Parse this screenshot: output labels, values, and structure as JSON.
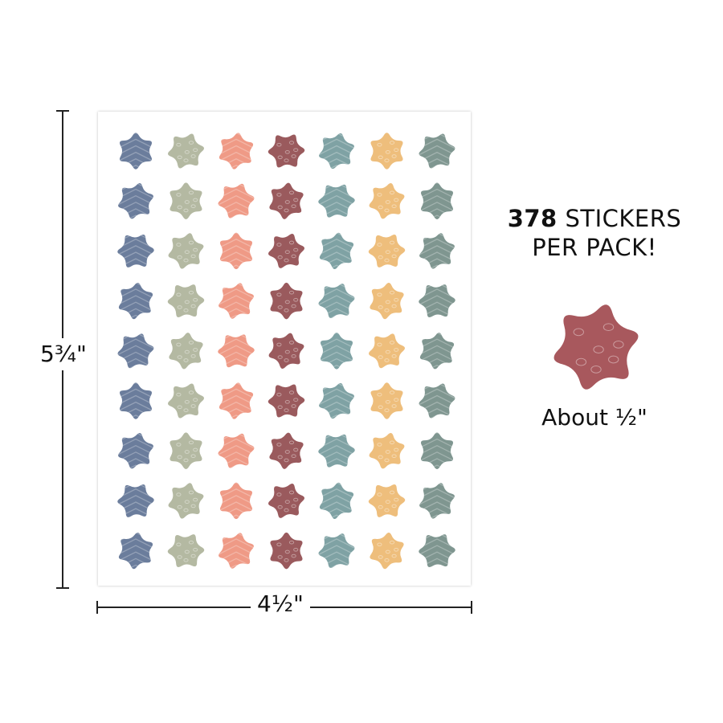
{
  "dimensions": {
    "height_label": "5¾\"",
    "width_label": "4½\""
  },
  "pack": {
    "count": "378",
    "count_suffix": " STICKERS",
    "line2": "PER PACK!"
  },
  "sample": {
    "label": "About ½\""
  },
  "sheet": {
    "rows": 9,
    "columns": [
      {
        "color": "#6b7d9c",
        "pattern": "chevron"
      },
      {
        "color": "#b4b9a2",
        "pattern": "leopard"
      },
      {
        "color": "#ef9a86",
        "pattern": "chevron"
      },
      {
        "color": "#9a5a5d",
        "pattern": "leopard"
      },
      {
        "color": "#7fa2a4",
        "pattern": "chevron"
      },
      {
        "color": "#eebe7c",
        "pattern": "leopard"
      },
      {
        "color": "#7f9690",
        "pattern": "chevron"
      }
    ]
  },
  "sample_color": "#a8585d"
}
